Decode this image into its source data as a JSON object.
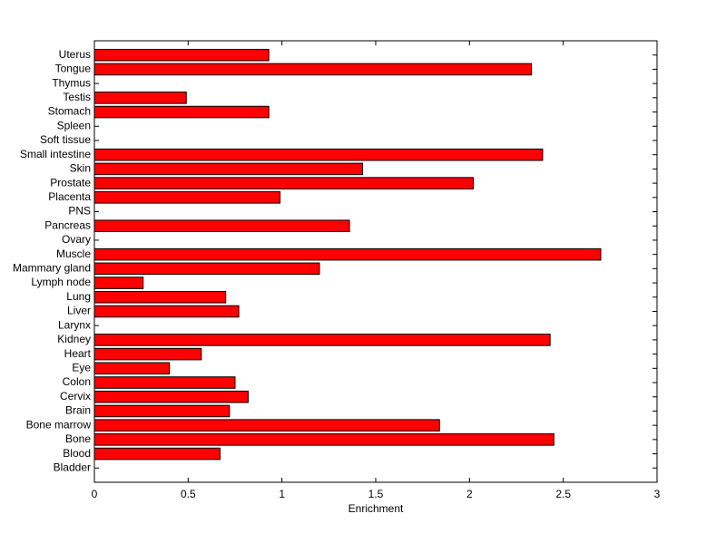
{
  "chart_data": {
    "type": "barh",
    "x_label": "Enrichment",
    "categories": [
      "Bladder",
      "Blood",
      "Bone",
      "Bone marrow",
      "Brain",
      "Cervix",
      "Colon",
      "Eye",
      "Heart",
      "Kidney",
      "Larynx",
      "Liver",
      "Lung",
      "Lymph node",
      "Mammary gland",
      "Muscle",
      "Ovary",
      "Pancreas",
      "PNS",
      "Placenta",
      "Prostate",
      "Skin",
      "Small intestine",
      "Soft tissue",
      "Spleen",
      "Stomach",
      "Testis",
      "Thymus",
      "Tongue",
      "Uterus"
    ],
    "values": [
      0,
      0.67,
      2.45,
      1.84,
      0.72,
      0.82,
      0.75,
      0.4,
      0.57,
      2.43,
      0,
      0.77,
      0.7,
      0.26,
      1.2,
      2.7,
      0,
      1.36,
      0,
      0.99,
      2.02,
      1.43,
      2.39,
      0,
      0,
      0.93,
      0.49,
      0,
      2.33,
      0.93
    ],
    "color": "#ff0000",
    "xlim": [
      0,
      3
    ],
    "xticks": [
      0,
      0.5,
      1,
      1.5,
      2,
      2.5,
      3
    ],
    "grid": false
  }
}
